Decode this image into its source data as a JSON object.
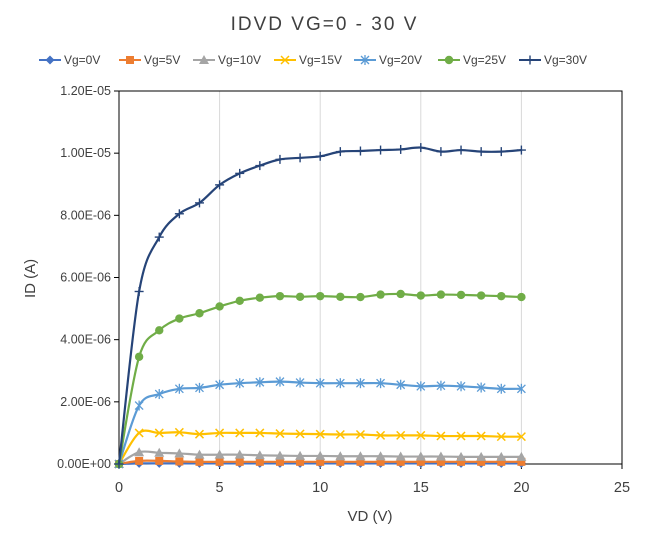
{
  "chart_data": {
    "type": "line",
    "title": "IDVD VG=0 - 30 V",
    "xlabel": "VD (V)",
    "ylabel": "ID (A)",
    "xlim": [
      0,
      25
    ],
    "ylim": [
      0,
      1.2e-05
    ],
    "x_ticks": [
      0,
      5,
      10,
      15,
      20,
      25
    ],
    "x_tick_labels": [
      "0",
      "5",
      "10",
      "15",
      "20",
      "25"
    ],
    "y_ticks": [
      0,
      2e-06,
      4e-06,
      6e-06,
      8e-06,
      1e-05,
      1.2e-05
    ],
    "y_tick_labels": [
      "0.00E+00",
      "2.00E-06",
      "4.00E-06",
      "6.00E-06",
      "8.00E-06",
      "1.00E-05",
      "1.20E-05"
    ],
    "grid": "vertical",
    "legend_position": "top",
    "x": [
      0,
      1,
      2,
      3,
      4,
      5,
      6,
      7,
      8,
      9,
      10,
      11,
      12,
      13,
      14,
      15,
      16,
      17,
      18,
      19,
      20
    ],
    "series": [
      {
        "name": "Vg=0V",
        "color": "#4472C4",
        "marker": "diamond",
        "values": [
          0,
          2e-08,
          2e-08,
          2e-08,
          2e-08,
          2e-08,
          2e-08,
          2e-08,
          2e-08,
          2e-08,
          2e-08,
          2e-08,
          2e-08,
          2e-08,
          2e-08,
          2e-08,
          2e-08,
          2e-08,
          2e-08,
          2e-08,
          2e-08
        ]
      },
      {
        "name": "Vg=5V",
        "color": "#ED7D31",
        "marker": "square",
        "values": [
          0,
          1e-07,
          1e-07,
          8e-08,
          7e-08,
          7e-08,
          7e-08,
          7e-08,
          7e-08,
          7e-08,
          7e-08,
          7e-08,
          7e-08,
          7e-08,
          7e-08,
          7e-08,
          7e-08,
          7e-08,
          7e-08,
          7e-08,
          7e-08
        ]
      },
      {
        "name": "Vg=10V",
        "color": "#A5A5A5",
        "marker": "triangle",
        "values": [
          0,
          3.8e-07,
          3.6e-07,
          3.4e-07,
          3e-07,
          3e-07,
          3e-07,
          2.8e-07,
          2.7e-07,
          2.6e-07,
          2.6e-07,
          2.5e-07,
          2.5e-07,
          2.5e-07,
          2.4e-07,
          2.4e-07,
          2.4e-07,
          2.3e-07,
          2.3e-07,
          2.3e-07,
          2.3e-07
        ]
      },
      {
        "name": "Vg=15V",
        "color": "#FFC000",
        "marker": "x",
        "values": [
          0,
          1e-06,
          1e-06,
          1.02e-06,
          9.6e-07,
          1e-06,
          1e-06,
          1e-06,
          9.8e-07,
          9.7e-07,
          9.6e-07,
          9.5e-07,
          9.5e-07,
          9.2e-07,
          9.2e-07,
          9.2e-07,
          9e-07,
          9e-07,
          9e-07,
          8.8e-07,
          8.8e-07
        ]
      },
      {
        "name": "Vg=20V",
        "color": "#5B9BD5",
        "marker": "asterisk",
        "values": [
          0,
          1.88e-06,
          2.25e-06,
          2.42e-06,
          2.45e-06,
          2.55e-06,
          2.6e-06,
          2.63e-06,
          2.65e-06,
          2.62e-06,
          2.6e-06,
          2.6e-06,
          2.6e-06,
          2.6e-06,
          2.55e-06,
          2.5e-06,
          2.52e-06,
          2.5e-06,
          2.46e-06,
          2.42e-06,
          2.42e-06
        ]
      },
      {
        "name": "Vg=25V",
        "color": "#70AD47",
        "marker": "circle",
        "values": [
          0,
          3.45e-06,
          4.3e-06,
          4.68e-06,
          4.85e-06,
          5.07e-06,
          5.25e-06,
          5.35e-06,
          5.4e-06,
          5.38e-06,
          5.4e-06,
          5.38e-06,
          5.37e-06,
          5.45e-06,
          5.47e-06,
          5.42e-06,
          5.45e-06,
          5.44e-06,
          5.42e-06,
          5.4e-06,
          5.37e-06
        ]
      },
      {
        "name": "Vg=30V",
        "color": "#264478",
        "marker": "plus",
        "values": [
          0,
          5.55e-06,
          7.3e-06,
          8.05e-06,
          8.4e-06,
          8.98e-06,
          9.35e-06,
          9.6e-06,
          9.8e-06,
          9.85e-06,
          9.9e-06,
          1.005e-05,
          1.007e-05,
          1.01e-05,
          1.012e-05,
          1.018e-05,
          1.005e-05,
          1.01e-05,
          1.005e-05,
          1.005e-05,
          1.01e-05
        ]
      }
    ]
  }
}
